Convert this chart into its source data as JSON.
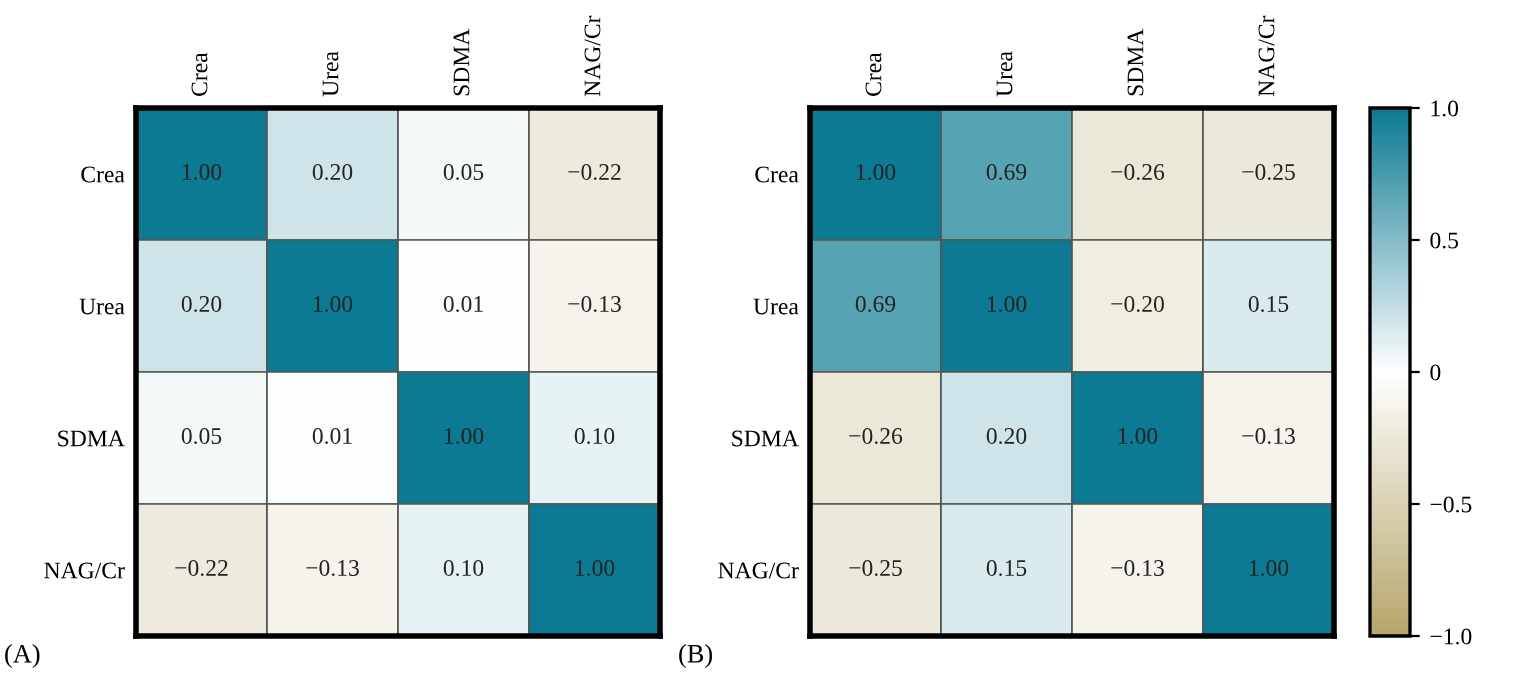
{
  "chart_data": [
    {
      "type": "heatmap",
      "categories": [
        "Crea",
        "Urea",
        "SDMA",
        "NAG/Cr"
      ],
      "y_categories": [
        "Crea",
        "Urea",
        "SDMA",
        "NAG/Cr"
      ],
      "cells": [
        [
          1.0,
          0.2,
          0.05,
          -0.22
        ],
        [
          0.2,
          1.0,
          0.01,
          -0.13
        ],
        [
          0.05,
          0.01,
          1.0,
          0.1
        ],
        [
          -0.22,
          -0.13,
          0.1,
          1.0
        ]
      ],
      "cell_labels": [
        [
          "1.00",
          "0.20",
          "0.05",
          "−0.22"
        ],
        [
          "0.20",
          "1.00",
          "0.01",
          "−0.13"
        ],
        [
          "0.05",
          "0.01",
          "1.00",
          "0.10"
        ],
        [
          "−0.22",
          "−0.13",
          "0.10",
          "1.00"
        ]
      ],
      "annotations": [
        "(A)"
      ]
    },
    {
      "type": "heatmap",
      "categories": [
        "Crea",
        "Urea",
        "SDMA",
        "NAG/Cr"
      ],
      "y_categories": [
        "Crea",
        "Urea",
        "SDMA",
        "NAG/Cr"
      ],
      "cells": [
        [
          1.0,
          0.69,
          -0.26,
          -0.25
        ],
        [
          0.69,
          1.0,
          -0.2,
          0.15
        ],
        [
          -0.26,
          0.2,
          1.0,
          -0.13
        ],
        [
          -0.25,
          0.15,
          -0.13,
          1.0
        ]
      ],
      "cell_labels": [
        [
          "1.00",
          "0.69",
          "−0.26",
          "−0.25"
        ],
        [
          "0.69",
          "1.00",
          "−0.20",
          "0.15"
        ],
        [
          "−0.26",
          "0.20",
          "1.00",
          "−0.13"
        ],
        [
          "−0.25",
          "0.15",
          "−0.13",
          "1.00"
        ]
      ],
      "clim": [
        -1,
        1
      ],
      "cticks": [
        {
          "value": -1,
          "label": "−1.0"
        },
        {
          "value": -0.5,
          "label": "−0.5"
        },
        0,
        0.5,
        {
          "value": 1,
          "label": "1.0"
        }
      ],
      "annotations": [
        "(B)"
      ]
    }
  ]
}
